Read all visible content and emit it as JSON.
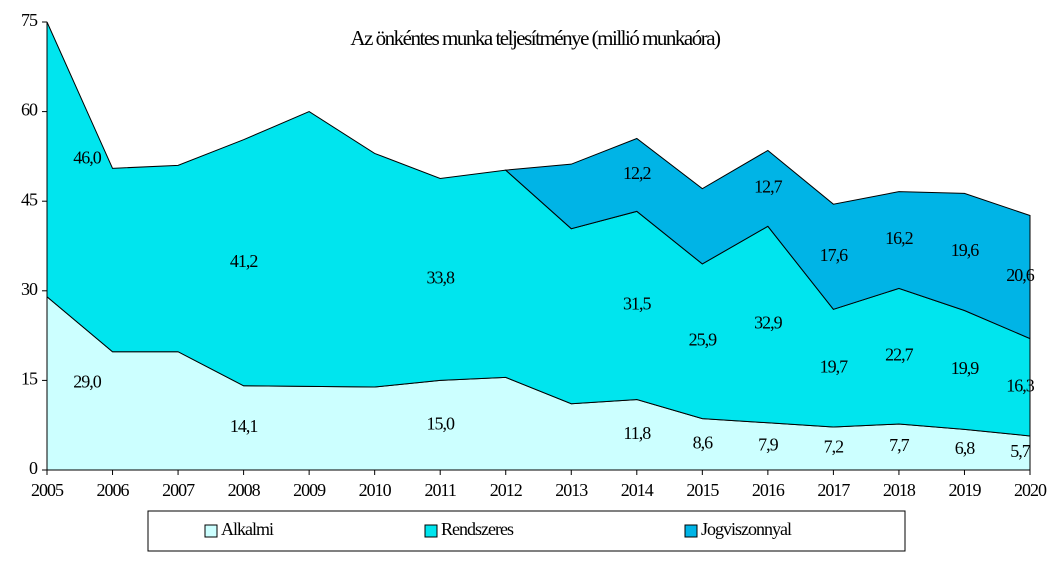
{
  "chart_data": {
    "type": "stacked_area",
    "title": "Az önkéntes munka teljesítménye (millió munkaóra)",
    "categories": [
      "2005",
      "2006",
      "2007",
      "2008",
      "2009",
      "2010",
      "2011",
      "2012",
      "2013",
      "2014",
      "2015",
      "2016",
      "2017",
      "2018",
      "2019",
      "2020"
    ],
    "series": [
      {
        "name": "Alkalmi",
        "color": "#ccffff",
        "values": [
          29.0,
          19.8,
          19.8,
          14.1,
          14.0,
          13.9,
          15.0,
          15.5,
          11.1,
          11.8,
          8.6,
          7.9,
          7.2,
          7.7,
          6.8,
          5.7
        ],
        "value_labels": [
          "29,0",
          null,
          null,
          "14,1",
          null,
          null,
          "15,0",
          null,
          null,
          "11,8",
          "8,6",
          "7,9",
          "7,2",
          "7,7",
          "6,8",
          "5,7"
        ]
      },
      {
        "name": "Rendszeres",
        "color": "#00e5ee",
        "values": [
          46.0,
          30.7,
          31.2,
          41.2,
          46.0,
          39.1,
          33.8,
          34.7,
          29.3,
          31.5,
          25.9,
          32.9,
          19.7,
          22.7,
          19.9,
          16.3
        ],
        "value_labels": [
          "46,0",
          null,
          null,
          "41,2",
          null,
          null,
          "33,8",
          null,
          null,
          "31,5",
          "25,9",
          "32,9",
          "19,7",
          "22,7",
          "19,9",
          "16,3"
        ]
      },
      {
        "name": "Jogviszonnyal",
        "color": "#00b4e6",
        "values": [
          null,
          null,
          null,
          null,
          null,
          null,
          null,
          0,
          10.8,
          12.2,
          12.6,
          12.7,
          17.6,
          16.2,
          19.6,
          20.6
        ],
        "value_labels": [
          null,
          null,
          null,
          null,
          null,
          null,
          null,
          null,
          null,
          "12,2",
          null,
          "12,7",
          "17,6",
          "16,2",
          "19,6",
          "20,6"
        ]
      }
    ],
    "ylim": [
      0,
      75
    ],
    "yticks": [
      0,
      15,
      30,
      45,
      60,
      75
    ]
  }
}
